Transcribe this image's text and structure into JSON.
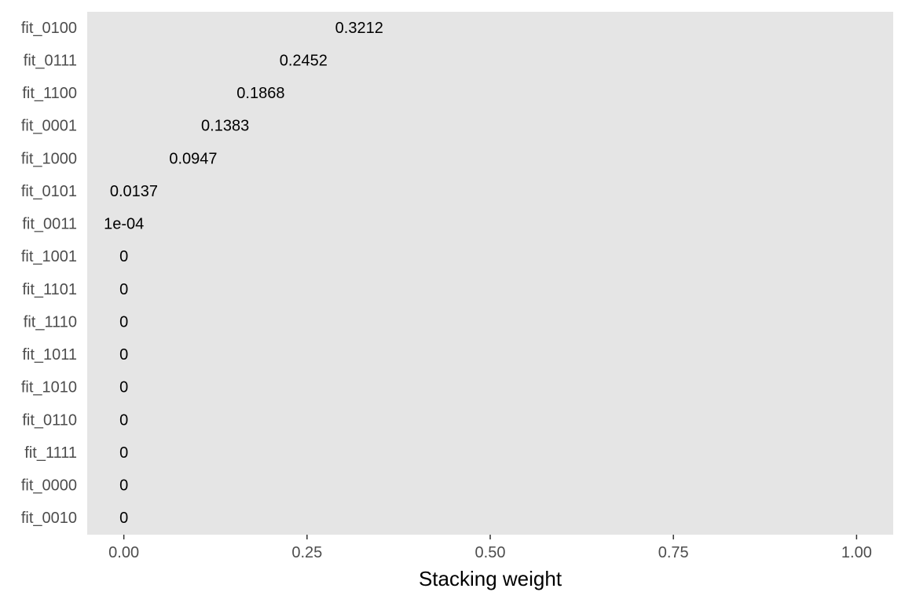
{
  "chart_data": {
    "type": "bar",
    "orientation": "horizontal",
    "title": "",
    "xlabel": "Stacking weight",
    "ylabel": "",
    "xlim": [
      -0.05,
      1.05
    ],
    "x_ticks": [
      "0.00",
      "0.25",
      "0.50",
      "0.75",
      "1.00"
    ],
    "x_tick_values": [
      0,
      0.25,
      0.5,
      0.75,
      1.0
    ],
    "grid": false,
    "panel_background": "#e5e5e5",
    "categories": [
      "fit_0100",
      "fit_0111",
      "fit_1100",
      "fit_0001",
      "fit_1000",
      "fit_0101",
      "fit_0011",
      "fit_1001",
      "fit_1101",
      "fit_1110",
      "fit_1011",
      "fit_1010",
      "fit_0110",
      "fit_1111",
      "fit_0000",
      "fit_0010"
    ],
    "values": [
      0.3212,
      0.2452,
      0.1868,
      0.1383,
      0.0947,
      0.0137,
      0.0001,
      0,
      0,
      0,
      0,
      0,
      0,
      0,
      0,
      0
    ],
    "value_labels": [
      "0.3212",
      "0.2452",
      "0.1868",
      "0.1383",
      "0.0947",
      "0.0137",
      "1e-04",
      "0",
      "0",
      "0",
      "0",
      "0",
      "0",
      "0",
      "0",
      "0"
    ],
    "legend": "none"
  }
}
